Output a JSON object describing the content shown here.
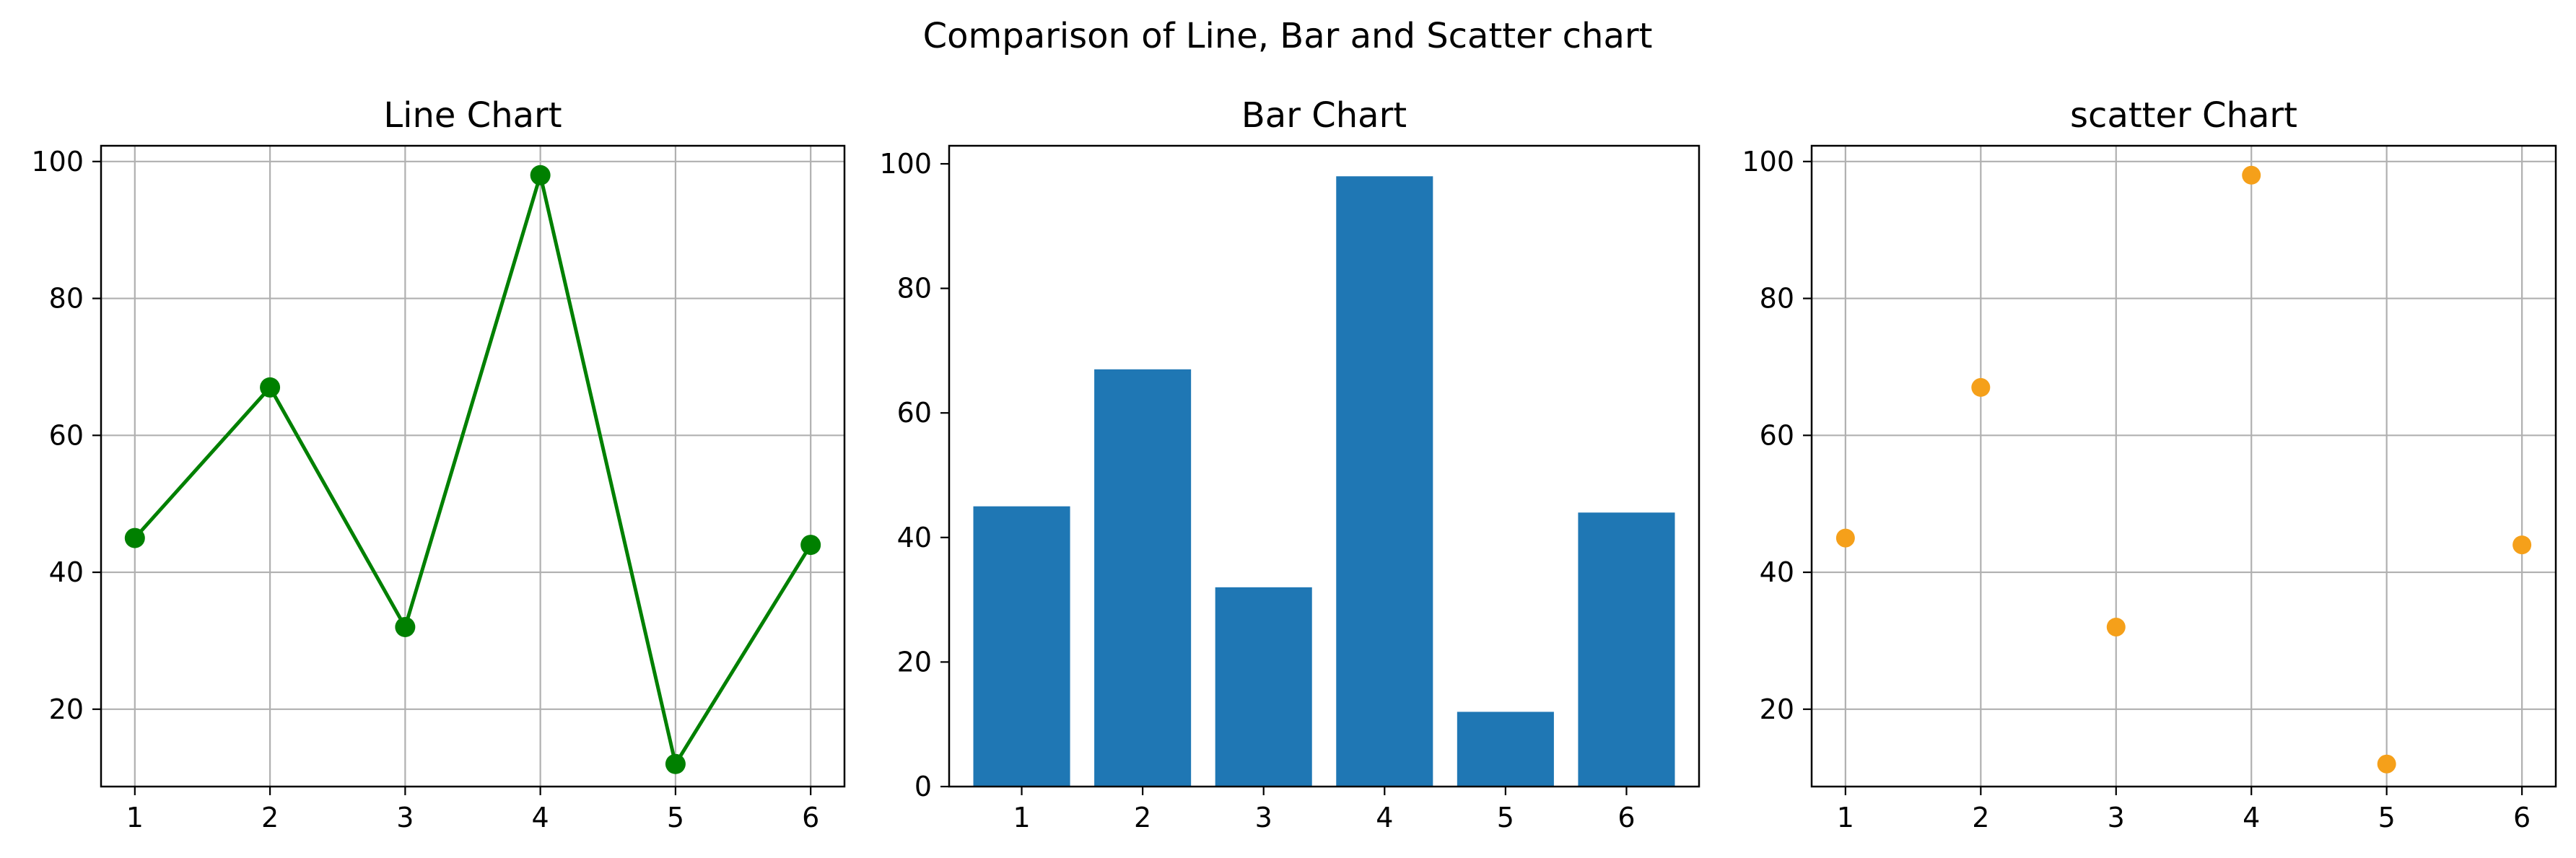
{
  "suptitle": "Comparison of Line, Bar and Scatter chart",
  "chart_data": [
    {
      "type": "line",
      "title": "Line Chart",
      "x": [
        1,
        2,
        3,
        4,
        5,
        6
      ],
      "y": [
        45,
        67,
        32,
        98,
        12,
        44
      ],
      "xticks": [
        1,
        2,
        3,
        4,
        5,
        6
      ],
      "yticks": [
        20,
        40,
        60,
        80,
        100
      ],
      "xlim": [
        0.75,
        6.25
      ],
      "ylim": [
        8.7,
        102.3
      ],
      "grid": true,
      "color": "#008000",
      "marker": "circle"
    },
    {
      "type": "bar",
      "title": "Bar Chart",
      "categories": [
        1,
        2,
        3,
        4,
        5,
        6
      ],
      "values": [
        45,
        67,
        32,
        98,
        12,
        44
      ],
      "xticks": [
        1,
        2,
        3,
        4,
        5,
        6
      ],
      "yticks": [
        0,
        20,
        40,
        60,
        80,
        100
      ],
      "xlim": [
        0.4,
        6.6
      ],
      "ylim": [
        0,
        102.9
      ],
      "grid": false,
      "color": "#1f77b4"
    },
    {
      "type": "scatter",
      "title": "scatter Chart",
      "x": [
        1,
        2,
        3,
        4,
        5,
        6
      ],
      "y": [
        45,
        67,
        32,
        98,
        12,
        44
      ],
      "xticks": [
        1,
        2,
        3,
        4,
        5,
        6
      ],
      "yticks": [
        20,
        40,
        60,
        80,
        100
      ],
      "xlim": [
        0.75,
        6.25
      ],
      "ylim": [
        8.7,
        102.3
      ],
      "grid": true,
      "color": "#f5a01a"
    }
  ]
}
